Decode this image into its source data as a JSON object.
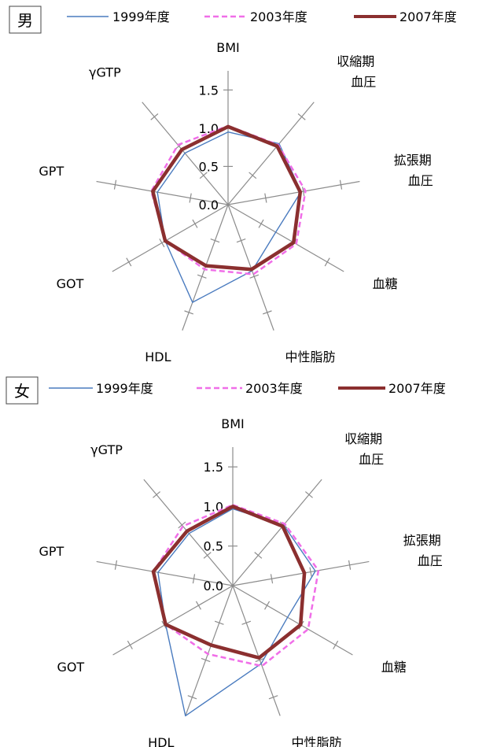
{
  "colors": {
    "s1999": "#4a7bbf",
    "s2003": "#f06ee8",
    "s2007": "#8b2f2f"
  },
  "legend": [
    "1999年度",
    "2003年度",
    "2007年度"
  ],
  "chart_data": [
    {
      "type": "radar",
      "title": "男",
      "axes": [
        "BMI",
        "収縮期\n血圧",
        "拡張期\n血圧",
        "血糖",
        "中性脂肪",
        "HDL",
        "GOT",
        "GPT",
        "γGTP"
      ],
      "rlim": [
        0,
        1.75
      ],
      "ticks": [
        0.0,
        0.5,
        1.0,
        1.5
      ],
      "tick_labels": [
        "0.0",
        "0.5",
        "1.0",
        "1.5"
      ],
      "series": [
        {
          "name": "1999年度",
          "style": "solid-thin",
          "values": [
            0.95,
            1.04,
            0.97,
            0.72,
            0.92,
            1.36,
            0.95,
            0.94,
            0.88
          ]
        },
        {
          "name": "2003年度",
          "style": "dashed",
          "values": [
            1.03,
            1.02,
            1.03,
            1.03,
            0.97,
            0.9,
            0.95,
            1.02,
            1.02
          ]
        },
        {
          "name": "2007年度",
          "style": "solid-thick",
          "values": [
            1.02,
            1.0,
            0.96,
            0.99,
            0.9,
            0.85,
            0.95,
            1.0,
            0.94
          ]
        }
      ]
    },
    {
      "type": "radar",
      "title": "女",
      "axes": [
        "BMI",
        "収縮期\n血圧",
        "拡張期\n血圧",
        "血糖",
        "中性脂肪",
        "HDL",
        "GOT",
        "GPT",
        "γGTP"
      ],
      "rlim": [
        0,
        1.75
      ],
      "ticks": [
        0.0,
        0.5,
        1.0,
        1.5
      ],
      "tick_labels": [
        "0.0",
        "0.5",
        "1.0",
        "1.5"
      ],
      "series": [
        {
          "name": "1999年度",
          "style": "solid-thin",
          "values": [
            0.97,
            1.0,
            1.06,
            0.8,
            1.05,
            1.75,
            0.98,
            0.96,
            0.86
          ]
        },
        {
          "name": "2003年度",
          "style": "dashed",
          "values": [
            1.02,
            1.02,
            1.1,
            1.1,
            1.08,
            0.92,
            0.98,
            1.02,
            0.98
          ]
        },
        {
          "name": "2007年度",
          "style": "solid-thick",
          "values": [
            1.0,
            0.98,
            0.92,
            0.99,
            0.97,
            0.8,
            0.98,
            1.02,
            0.9
          ]
        }
      ]
    }
  ]
}
